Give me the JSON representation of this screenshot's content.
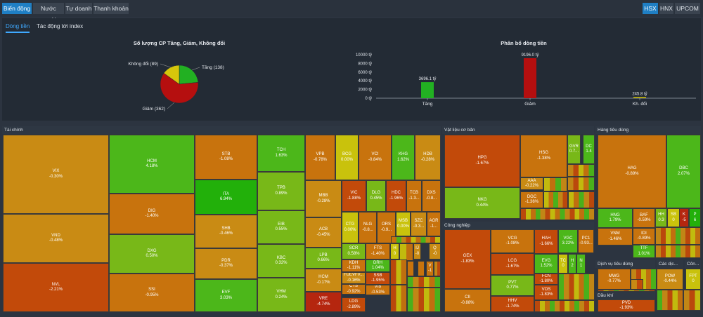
{
  "top_tabs": [
    "Biến động",
    "Nước ngoài",
    "Tự doanh",
    "Thanh khoản"
  ],
  "exchanges": [
    "HSX",
    "HNX",
    "UPCOM"
  ],
  "subtabs": [
    "Dòng tiền",
    "Tác động tới index"
  ],
  "colors": {
    "up": "#22b022",
    "down": "#c3200f",
    "flat": "#d6c60b",
    "accent": "#1f7fc4"
  },
  "chart_data": [
    {
      "type": "pie",
      "title": "Số lượng CP Tăng, Giảm, Không đổi",
      "labels": [
        "Tăng (138)",
        "Giảm (362)",
        "Không đổi (89)"
      ],
      "values": [
        138,
        362,
        89
      ],
      "colors": [
        "#22b022",
        "#b50f0f",
        "#d6c60b"
      ]
    },
    {
      "type": "bar",
      "title": "Phân bổ dòng tiền",
      "categories": [
        "Tăng",
        "Giảm",
        "Kh. đổi"
      ],
      "values": [
        3696.1,
        9196.0,
        245.8
      ],
      "data_labels": [
        "3696.1 tỷ",
        "9196.0 tỷ",
        "245.8 tỷ"
      ],
      "colors": [
        "#22b022",
        "#b50f0f",
        "#d6c60b"
      ],
      "ylim": [
        0,
        10000
      ],
      "yticks": [
        "0 tỷ",
        "2000 tỷ",
        "4000 tỷ",
        "6000 tỷ",
        "8000 tỷ",
        "10000 tỷ"
      ],
      "grid": false
    }
  ],
  "sectors": [
    "Tài chính",
    "Vật liệu cơ bản",
    "Hàng tiêu dùng",
    "Công nghiệp",
    "Dịch vụ tiêu dùng",
    "Các dịc...",
    "Côn...",
    "Dầu khí"
  ],
  "tiles": [
    {
      "s": "VIX",
      "c": "-0.30%"
    },
    {
      "s": "VND",
      "c": "-0.48%"
    },
    {
      "s": "NVL",
      "c": "-2.21%"
    },
    {
      "s": "HCM",
      "c": "4.18%"
    },
    {
      "s": "DIG",
      "c": "-1.40%"
    },
    {
      "s": "DXG",
      "c": "0.50%"
    },
    {
      "s": "SSI",
      "c": "-0.95%"
    },
    {
      "s": "STB",
      "c": "-1.08%"
    },
    {
      "s": "ITA",
      "c": "6.94%"
    },
    {
      "s": "SHB",
      "c": "-0.46%"
    },
    {
      "s": "PDR",
      "c": "-0.37%"
    },
    {
      "s": "EVF",
      "c": "3.03%"
    },
    {
      "s": "TCH",
      "c": "1.63%"
    },
    {
      "s": "TPB",
      "c": "0.89%"
    },
    {
      "s": "EIB",
      "c": "0.55%"
    },
    {
      "s": "KBC",
      "c": "0.32%"
    },
    {
      "s": "VHM",
      "c": "0.24%"
    },
    {
      "s": "VPB",
      "c": "-0.78%"
    },
    {
      "s": "BCG",
      "c": "0.00%"
    },
    {
      "s": "VCI",
      "c": "-0.84%"
    },
    {
      "s": "KHG",
      "c": "1.62%"
    },
    {
      "s": "HDB",
      "c": "-0.28%"
    },
    {
      "s": "MBB",
      "c": "-0.28%"
    },
    {
      "s": "VIC",
      "c": "-1.88%"
    },
    {
      "s": "DLG",
      "c": "0.45%"
    },
    {
      "s": "HDC",
      "c": "-1.96%"
    },
    {
      "s": "TCB",
      "c": "-1.3..."
    },
    {
      "s": "DXS",
      "c": "-0.8..."
    },
    {
      "s": "ACB",
      "c": "-0.45%"
    },
    {
      "s": "CTG",
      "c": "0.00%"
    },
    {
      "s": "NLG",
      "c": "-0.8..."
    },
    {
      "s": "ORS",
      "c": "-0.9..."
    },
    {
      "s": "MSB",
      "c": "0.00%"
    },
    {
      "s": "SZC",
      "c": "-0.3..."
    },
    {
      "s": "AGR",
      "c": "-1..."
    },
    {
      "s": "LPB",
      "c": "0.66%"
    },
    {
      "s": "SCR",
      "c": "0.58%"
    },
    {
      "s": "FTS",
      "c": "-1.40%"
    },
    {
      "s": "H",
      "c": "0"
    },
    {
      "s": "IJ",
      "c": "-0"
    },
    {
      "s": "Q",
      "c": "-0"
    },
    {
      "s": "HCM",
      "c": "-0.17%"
    },
    {
      "s": "KDH",
      "c": "-1.11%"
    },
    {
      "s": "DRH",
      "c": "1.04%"
    },
    {
      "s": "BI",
      "c": "-1"
    },
    {
      "s": "O",
      "c": "-1"
    },
    {
      "s": "V",
      "c": "-1"
    },
    {
      "s": "FUEVFV...",
      "c": "-0.16%"
    },
    {
      "s": "SSB",
      "c": "-1.95%"
    },
    {
      "s": "VRE",
      "c": "-4.74%"
    },
    {
      "s": "CTS",
      "c": "-0.92%"
    },
    {
      "s": "VIB",
      "c": "-0.53%"
    },
    {
      "s": "LDG",
      "c": "-2.89%"
    },
    {
      "s": "HPG",
      "c": "-1.67%"
    },
    {
      "s": "NKG",
      "c": "0.44%"
    },
    {
      "s": "HSG",
      "c": "-1.38%"
    },
    {
      "s": "GVR",
      "c": "0.7..."
    },
    {
      "s": "DC",
      "c": "1.4"
    },
    {
      "s": "AAA",
      "c": "-0.22%"
    },
    {
      "s": "DGC",
      "c": "-1.36%"
    },
    {
      "s": "GEX",
      "c": "-1.83%"
    },
    {
      "s": "CII",
      "c": "-0.88%"
    },
    {
      "s": "VCG",
      "c": "-1.08%"
    },
    {
      "s": "LCG",
      "c": "-1.67%"
    },
    {
      "s": "PVT",
      "c": "0.77%"
    },
    {
      "s": "HHV",
      "c": "-1.74%"
    },
    {
      "s": "HAH",
      "c": "-1.66%"
    },
    {
      "s": "VGC",
      "c": "3.22%"
    },
    {
      "s": "PC1",
      "c": "-0.93..."
    },
    {
      "s": "EVG",
      "c": "1.52%"
    },
    {
      "s": "TC",
      "c": "0"
    },
    {
      "s": "H",
      "c": "2"
    },
    {
      "s": "N",
      "c": "1"
    },
    {
      "s": "FCN",
      "c": "-1.80%"
    },
    {
      "s": "VOS",
      "c": "-1.83%"
    },
    {
      "s": "HAG",
      "c": "-0.89%"
    },
    {
      "s": "DBC",
      "c": "2.07%"
    },
    {
      "s": "HNG",
      "c": "1.79%"
    },
    {
      "s": "BAF",
      "c": "-0.59%"
    },
    {
      "s": "VNM",
      "c": "-1.46%"
    },
    {
      "s": "IDI",
      "c": "-0.89%"
    },
    {
      "s": "TTF",
      "c": "1.01%"
    },
    {
      "s": "HH",
      "c": "0.3"
    },
    {
      "s": "SB",
      "c": "0"
    },
    {
      "s": "K",
      "c": "-5"
    },
    {
      "s": "P",
      "c": "6"
    },
    {
      "s": "MWG",
      "c": "-0.77%"
    },
    {
      "s": "POW",
      "c": "-0.44%"
    },
    {
      "s": "FPT",
      "c": "0"
    },
    {
      "s": "PVD",
      "c": "-1.93%"
    }
  ]
}
